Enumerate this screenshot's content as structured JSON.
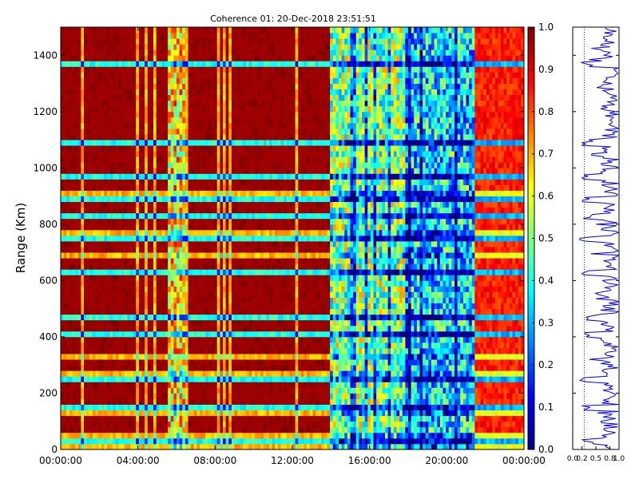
{
  "chart_data": [
    {
      "type": "heatmap",
      "title": "Coherence 01: 20-Dec-2018 23:51:51",
      "xlabel": "",
      "ylabel": "Range (Km)",
      "x_ticks": [
        "00:00:00",
        "04:00:00",
        "08:00:00",
        "12:00:00",
        "16:00:00",
        "20:00:00",
        "00:00:00"
      ],
      "xlim_hours": [
        0,
        24
      ],
      "y_ticks": [
        0,
        200,
        400,
        600,
        800,
        1000,
        1200,
        1400
      ],
      "ylim": [
        0,
        1500
      ],
      "colorbar": {
        "ticks": [
          "0.0",
          "0.1",
          "0.2",
          "0.3",
          "0.4",
          "0.5",
          "0.6",
          "0.7",
          "0.8",
          "0.9",
          "1.0"
        ],
        "range": [
          0,
          1
        ],
        "colormap": "jet"
      },
      "dominant_values_by_time_hours": [
        {
          "from": 0,
          "to": 14,
          "coherence": 0.95
        },
        {
          "from": 5.5,
          "to": 6.5,
          "coherence": 0.65
        },
        {
          "from": 14,
          "to": 18,
          "coherence": 0.5
        },
        {
          "from": 18,
          "to": 21.5,
          "coherence": 0.35
        },
        {
          "from": 21.5,
          "to": 24,
          "coherence": 0.85
        }
      ],
      "strongly_low_rows_km": [
        20,
        150,
        240,
        400,
        460,
        630,
        740,
        820,
        880,
        975,
        1100,
        1370
      ]
    },
    {
      "type": "line",
      "title": "",
      "xlabel": "",
      "ylabel": "",
      "x_ticks": [
        "0.0",
        "0.2",
        "0.5",
        "0.8",
        "1.0"
      ],
      "xlim": [
        0,
        1
      ],
      "ylim": [
        0,
        1500
      ],
      "y_tick_values": [
        0,
        200,
        400,
        600,
        800,
        1000,
        1200,
        1400
      ],
      "reference_line_x": 0.25,
      "series_color": "#0000ff",
      "typical_range": [
        0.6,
        1.0
      ]
    }
  ]
}
